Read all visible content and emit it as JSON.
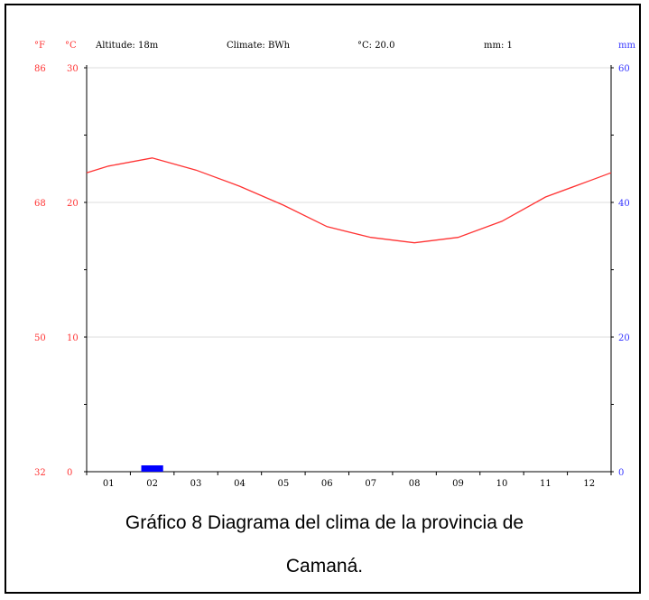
{
  "chart_data": {
    "type": "line",
    "header": {
      "altitude": "Altitude: 18m",
      "climate": "Climate: BWh",
      "mean_temp": "°C: 20.0",
      "precip": "mm: 1"
    },
    "left_axis_f": {
      "unit": "°F",
      "ticks": [
        "86",
        "68",
        "50",
        "32"
      ]
    },
    "left_axis_c": {
      "unit": "°C",
      "ticks": [
        "30",
        "20",
        "10",
        "0"
      ],
      "ylim": [
        0,
        30
      ]
    },
    "right_axis": {
      "unit": "mm",
      "ticks": [
        "60",
        "40",
        "20",
        "0"
      ],
      "ylim": [
        0,
        60
      ]
    },
    "categories": [
      "01",
      "02",
      "03",
      "04",
      "05",
      "06",
      "07",
      "08",
      "09",
      "10",
      "11",
      "12"
    ],
    "series": [
      {
        "kind": "temperature_line",
        "axis": "left_c",
        "color": "#ff3333",
        "values": [
          22.7,
          23.3,
          22.4,
          21.2,
          19.8,
          18.2,
          17.4,
          17.0,
          17.4,
          18.6,
          20.4,
          21.6
        ],
        "start_value": 22.2,
        "end_value": 22.2
      },
      {
        "kind": "precipitation_bars",
        "axis": "right",
        "color": "#0000ff",
        "values": [
          0,
          1,
          0,
          0,
          0,
          0,
          0,
          0,
          0,
          0,
          0,
          0
        ]
      }
    ],
    "grid": true,
    "colors": {
      "temp_axis_text": "#ff3333",
      "precip_axis_text": "#3333ff",
      "grid": "#dddddd"
    }
  },
  "caption": {
    "line1": "Gráfico 8 Diagrama del clima de la provincia de",
    "line2": "Camaná."
  }
}
